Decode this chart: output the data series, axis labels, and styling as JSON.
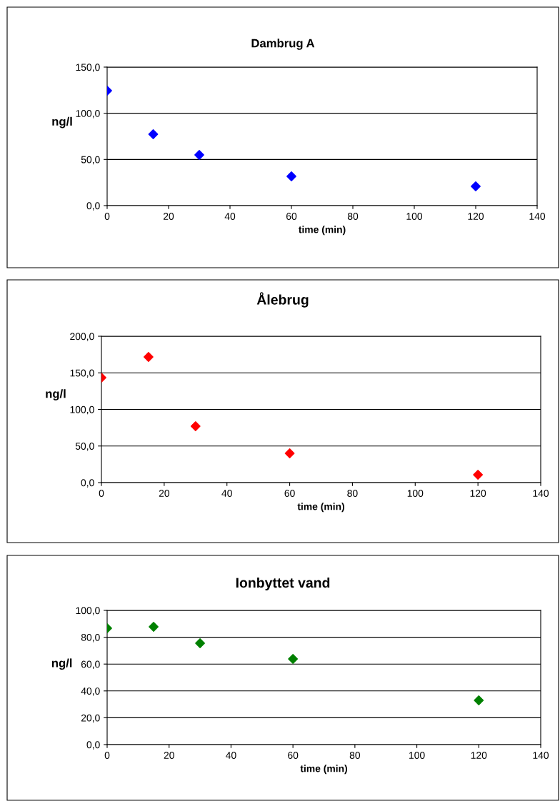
{
  "chart_data": [
    {
      "type": "scatter",
      "title": "Dambrug A",
      "xlabel": "time (min)",
      "ylabel": "ng/l",
      "x": [
        0,
        15,
        30,
        60,
        120
      ],
      "series": [
        {
          "color": "#0000ff",
          "values": [
            124.5,
            77.3,
            54.9,
            31.7,
            20.9
          ]
        }
      ],
      "xlim": [
        0,
        140
      ],
      "xticks": [
        0,
        20,
        40,
        60,
        80,
        100,
        120,
        140
      ],
      "ylim": [
        0,
        150
      ],
      "yticks": [
        {
          "value": 0,
          "label": "0,0"
        },
        {
          "value": 50,
          "label": "50,0"
        },
        {
          "value": 100,
          "label": "100,0"
        },
        {
          "value": 150,
          "label": "150,0"
        }
      ],
      "grid": "y",
      "marker": "diamond"
    },
    {
      "type": "scatter",
      "title": "Ålebrug",
      "xlabel": "time (min)",
      "ylabel": "ng/l",
      "x": [
        0,
        15,
        30,
        60,
        120
      ],
      "series": [
        {
          "color": "#ff0000",
          "values": [
            143.4,
            171.7,
            77.0,
            40.0,
            10.7
          ]
        }
      ],
      "xlim": [
        0,
        140
      ],
      "xticks": [
        0,
        20,
        40,
        60,
        80,
        100,
        120,
        140
      ],
      "ylim": [
        0,
        200
      ],
      "yticks": [
        {
          "value": 0,
          "label": "0,0"
        },
        {
          "value": 50,
          "label": "50,0"
        },
        {
          "value": 100,
          "label": "100,0"
        },
        {
          "value": 150,
          "label": "150,0"
        },
        {
          "value": 200,
          "label": "200,0"
        }
      ],
      "grid": "y",
      "marker": "diamond"
    },
    {
      "type": "scatter",
      "title": "Ionbyttet vand",
      "xlabel": "time (min)",
      "ylabel": "ng/l",
      "x": [
        0,
        15,
        30,
        60,
        120
      ],
      "series": [
        {
          "color": "#008000",
          "values": [
            86.7,
            87.8,
            75.5,
            63.8,
            33.0
          ]
        }
      ],
      "xlim": [
        0,
        140
      ],
      "xticks": [
        0,
        20,
        40,
        60,
        80,
        100,
        120,
        140
      ],
      "ylim": [
        0,
        100
      ],
      "yticks": [
        {
          "value": 0,
          "label": "0,0"
        },
        {
          "value": 20,
          "label": "20,0"
        },
        {
          "value": 40,
          "label": "40,0"
        },
        {
          "value": 60,
          "label": "60,0"
        },
        {
          "value": 80,
          "label": "80,0"
        },
        {
          "value": 100,
          "label": "100,0"
        }
      ],
      "grid": "y",
      "marker": "diamond"
    }
  ]
}
